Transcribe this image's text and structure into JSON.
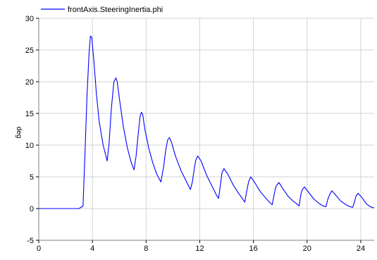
{
  "chart_data": {
    "type": "line",
    "legend_position": "top-left",
    "grid": true,
    "xlabel": "",
    "ylabel": "deg",
    "xlim": [
      0,
      25
    ],
    "ylim": [
      -5,
      30
    ],
    "x_ticks": [
      0,
      4,
      8,
      12,
      16,
      20,
      24
    ],
    "y_ticks": [
      -5,
      0,
      5,
      10,
      15,
      20,
      25,
      30
    ],
    "series": [
      {
        "name": "frontAxis.SteeringInertia.phi",
        "color": "#0000ff",
        "x": [
          0,
          3.0,
          3.3,
          3.45,
          3.6,
          3.75,
          3.85,
          3.95,
          4.1,
          4.3,
          4.5,
          4.8,
          5.1,
          5.25,
          5.4,
          5.6,
          5.75,
          5.85,
          6.0,
          6.3,
          6.6,
          6.9,
          7.1,
          7.25,
          7.4,
          7.55,
          7.65,
          7.75,
          7.9,
          8.2,
          8.5,
          8.8,
          9.1,
          9.3,
          9.45,
          9.6,
          9.75,
          9.9,
          10.2,
          10.6,
          11.0,
          11.3,
          11.45,
          11.6,
          11.7,
          11.85,
          12.1,
          12.5,
          12.9,
          13.2,
          13.4,
          13.55,
          13.65,
          13.8,
          14.1,
          14.5,
          14.9,
          15.2,
          15.35,
          15.55,
          15.65,
          15.8,
          16.1,
          16.5,
          16.9,
          17.2,
          17.4,
          17.6,
          17.7,
          17.9,
          18.2,
          18.6,
          19.0,
          19.2,
          19.4,
          19.55,
          19.65,
          19.8,
          20.1,
          20.5,
          20.9,
          21.2,
          21.4,
          21.55,
          21.7,
          21.85,
          22.1,
          22.5,
          22.9,
          23.2,
          23.4,
          23.55,
          23.65,
          23.8,
          24.1,
          24.4,
          24.7,
          25.0
        ],
        "y": [
          0,
          0,
          0.4,
          9.0,
          18.0,
          24.5,
          27.2,
          27.0,
          23.5,
          18.0,
          13.8,
          10.0,
          7.5,
          10.5,
          15.5,
          20.0,
          20.6,
          20.0,
          17.5,
          13.0,
          9.6,
          7.2,
          6.1,
          8.2,
          11.5,
          14.5,
          15.2,
          14.8,
          12.6,
          9.5,
          7.2,
          5.4,
          4.2,
          6.5,
          9.0,
          10.8,
          11.2,
          10.4,
          8.2,
          6.0,
          4.3,
          3.0,
          4.2,
          6.4,
          7.6,
          8.3,
          7.5,
          5.3,
          3.6,
          2.3,
          1.6,
          3.9,
          5.6,
          6.3,
          5.4,
          3.7,
          2.4,
          1.5,
          1.0,
          3.3,
          4.3,
          5.0,
          4.1,
          2.7,
          1.7,
          1.0,
          0.6,
          2.8,
          3.6,
          4.1,
          3.1,
          1.9,
          1.1,
          0.8,
          0.4,
          2.4,
          3.0,
          3.4,
          2.6,
          1.5,
          0.8,
          0.4,
          0.3,
          1.5,
          2.3,
          2.8,
          2.2,
          1.2,
          0.6,
          0.3,
          0.2,
          1.2,
          2.0,
          2.4,
          1.7,
          0.8,
          0.3,
          0.1
        ]
      }
    ]
  }
}
